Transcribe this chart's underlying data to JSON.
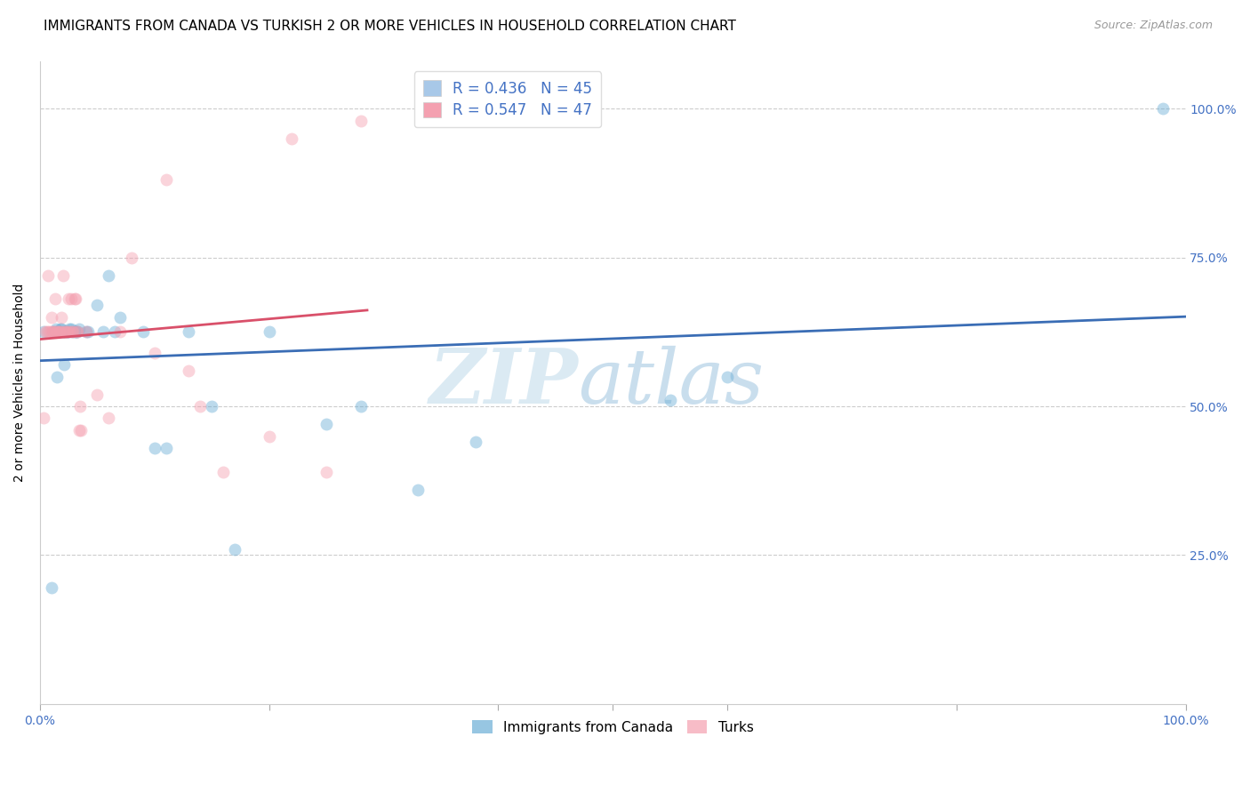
{
  "title": "IMMIGRANTS FROM CANADA VS TURKISH 2 OR MORE VEHICLES IN HOUSEHOLD CORRELATION CHART",
  "source": "Source: ZipAtlas.com",
  "ylabel": "2 or more Vehicles in Household",
  "ytick_values": [
    0.0,
    0.25,
    0.5,
    0.75,
    1.0
  ],
  "ytick_labels": [
    "",
    "25.0%",
    "50.0%",
    "75.0%",
    "100.0%"
  ],
  "xlim": [
    0.0,
    1.0
  ],
  "ylim": [
    0.0,
    1.08
  ],
  "legend_entry1_label": "R = 0.436   N = 45",
  "legend_entry2_label": "R = 0.547   N = 47",
  "legend_entry1_color": "#a8c8e8",
  "legend_entry2_color": "#f4a0b0",
  "series1_color": "#6baed6",
  "series2_color": "#f4a0b0",
  "line1_color": "#3a6db5",
  "line2_color": "#d9506a",
  "watermark_zip": "ZIP",
  "watermark_atlas": "atlas",
  "series1_name": "Immigrants from Canada",
  "series2_name": "Turks",
  "background_color": "#ffffff",
  "grid_color": "#cccccc",
  "title_fontsize": 11,
  "axis_label_fontsize": 10,
  "tick_fontsize": 10,
  "legend_fontsize": 12,
  "marker_size": 100,
  "marker_alpha": 0.45,
  "canada_x": [
    0.003,
    0.01,
    0.012,
    0.013,
    0.014,
    0.015,
    0.016,
    0.017,
    0.018,
    0.019,
    0.02,
    0.021,
    0.022,
    0.023,
    0.024,
    0.025,
    0.026,
    0.027,
    0.028,
    0.03,
    0.031,
    0.032,
    0.033,
    0.034,
    0.04,
    0.042,
    0.05,
    0.055,
    0.06,
    0.065,
    0.07,
    0.09,
    0.1,
    0.11,
    0.13,
    0.15,
    0.17,
    0.2,
    0.25,
    0.28,
    0.33,
    0.38,
    0.55,
    0.6,
    0.98
  ],
  "canada_y": [
    0.625,
    0.195,
    0.625,
    0.625,
    0.63,
    0.55,
    0.625,
    0.625,
    0.63,
    0.63,
    0.625,
    0.57,
    0.625,
    0.625,
    0.625,
    0.625,
    0.63,
    0.63,
    0.625,
    0.625,
    0.625,
    0.625,
    0.625,
    0.63,
    0.625,
    0.625,
    0.67,
    0.625,
    0.72,
    0.625,
    0.65,
    0.625,
    0.43,
    0.43,
    0.625,
    0.5,
    0.26,
    0.625,
    0.47,
    0.5,
    0.36,
    0.44,
    0.51,
    0.55,
    1.0
  ],
  "turk_x": [
    0.003,
    0.005,
    0.006,
    0.007,
    0.008,
    0.009,
    0.01,
    0.011,
    0.012,
    0.013,
    0.014,
    0.015,
    0.016,
    0.017,
    0.018,
    0.019,
    0.02,
    0.021,
    0.022,
    0.023,
    0.024,
    0.025,
    0.026,
    0.027,
    0.028,
    0.029,
    0.03,
    0.031,
    0.032,
    0.033,
    0.034,
    0.035,
    0.036,
    0.04,
    0.05,
    0.06,
    0.07,
    0.08,
    0.1,
    0.11,
    0.13,
    0.14,
    0.16,
    0.2,
    0.22,
    0.25,
    0.28
  ],
  "turk_y": [
    0.48,
    0.625,
    0.625,
    0.72,
    0.625,
    0.625,
    0.65,
    0.625,
    0.625,
    0.68,
    0.625,
    0.625,
    0.625,
    0.625,
    0.625,
    0.65,
    0.72,
    0.625,
    0.625,
    0.625,
    0.625,
    0.68,
    0.625,
    0.68,
    0.625,
    0.625,
    0.68,
    0.68,
    0.625,
    0.625,
    0.46,
    0.5,
    0.46,
    0.625,
    0.52,
    0.48,
    0.625,
    0.75,
    0.59,
    0.88,
    0.56,
    0.5,
    0.39,
    0.45,
    0.95,
    0.39,
    0.98
  ]
}
